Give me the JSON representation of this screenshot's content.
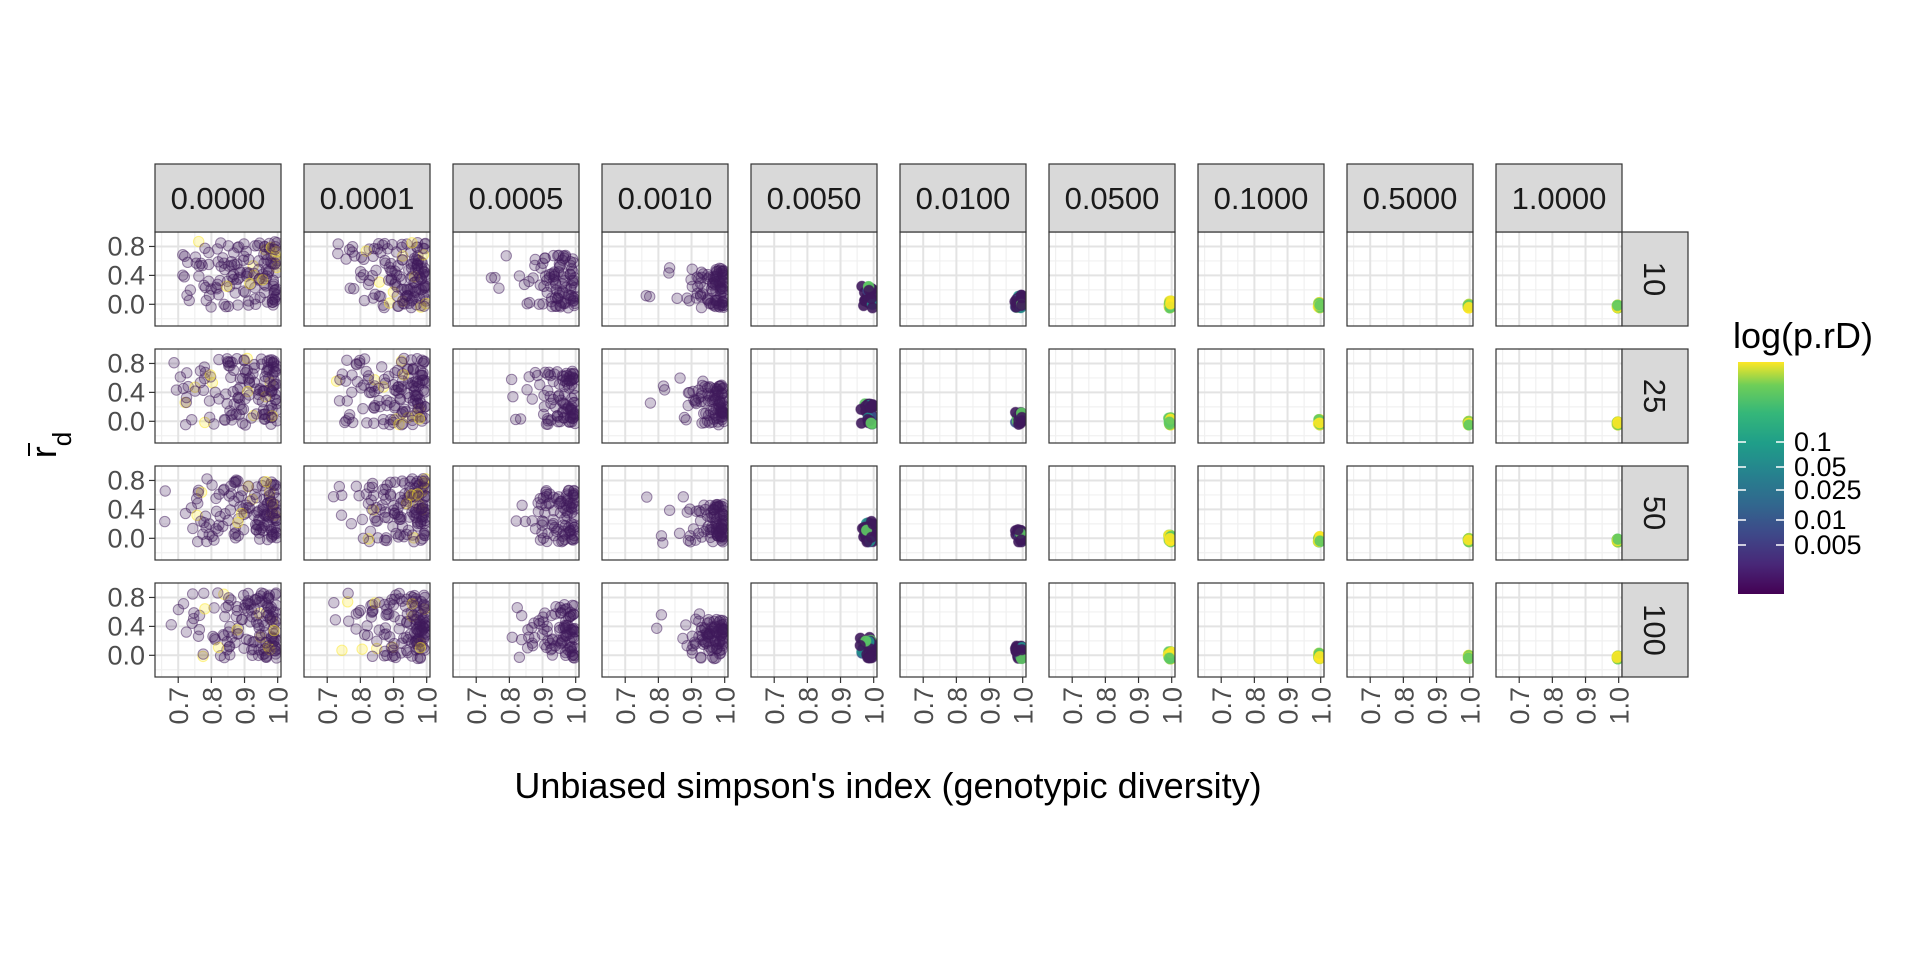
{
  "chart_data": {
    "type": "scatter",
    "facet_columns": [
      "0.0000",
      "0.0001",
      "0.0005",
      "0.0010",
      "0.0050",
      "0.0100",
      "0.0500",
      "0.1000",
      "0.5000",
      "1.0000"
    ],
    "facet_rows": [
      "10",
      "25",
      "50",
      "100"
    ],
    "xlabel": "Unbiased simpson's index (genotypic diversity)",
    "ylabel_main": "r",
    "ylabel_sub": "d",
    "xlim": [
      0.63,
      1.01
    ],
    "ylim": [
      -0.3,
      1.0
    ],
    "x_ticks": [
      "0.7",
      "0.8",
      "0.9",
      "1.0"
    ],
    "y_ticks": [
      "0.0",
      "0.4",
      "0.8"
    ],
    "legend": {
      "title": "log(p.rD)",
      "ticks": [
        "0.1",
        "0.05",
        "0.025",
        "0.01",
        "0.005"
      ],
      "colors": [
        "#440154",
        "#3b528b",
        "#21908c",
        "#5dc963",
        "#fde725"
      ]
    },
    "point_color_default": "#3f1a5c"
  }
}
